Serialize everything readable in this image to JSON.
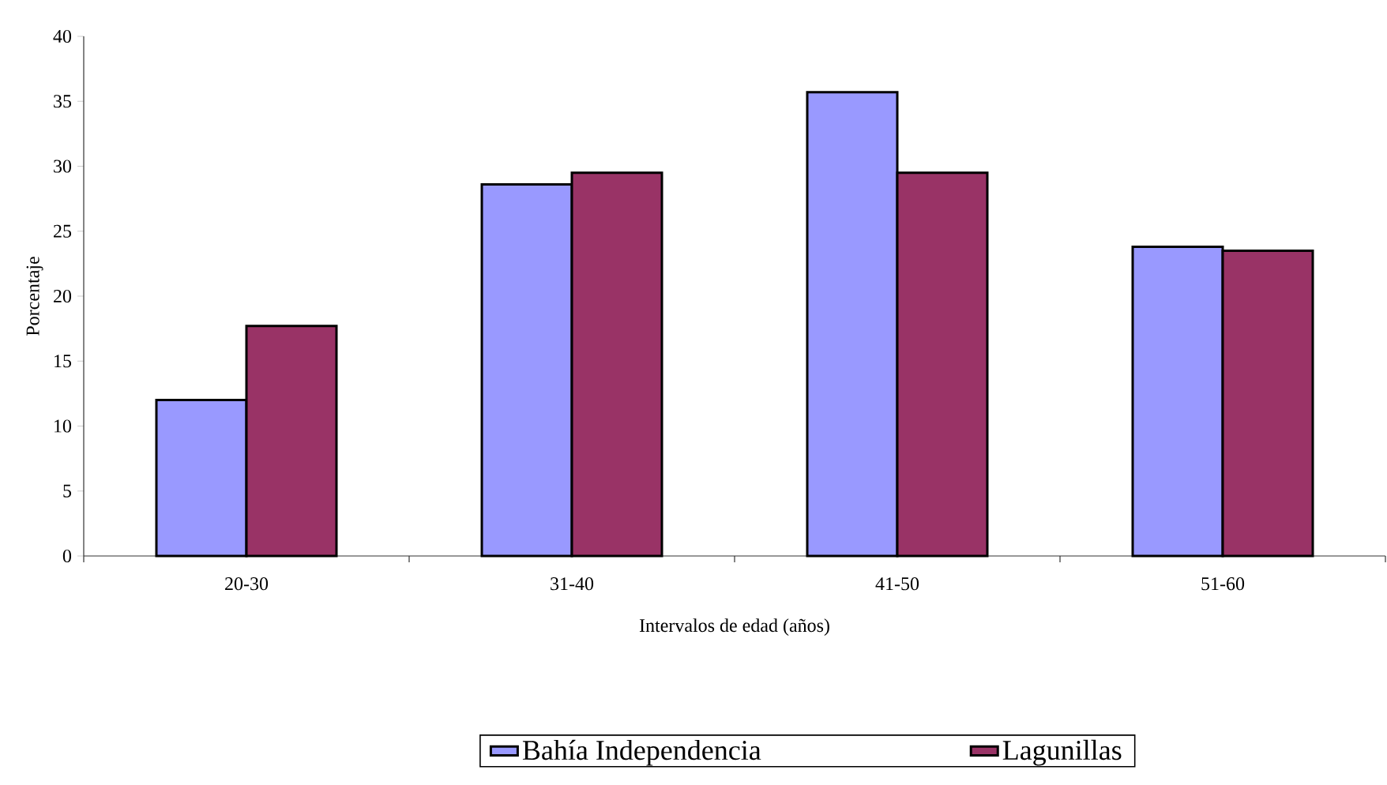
{
  "chart_data": {
    "type": "bar",
    "xlabel": "Intervalos de edad (años)",
    "ylabel": "Porcentaje",
    "categories": [
      "20-30",
      "31-40",
      "41-50",
      "51-60"
    ],
    "series": [
      {
        "name": "Bahía Independencia",
        "color": "#9999ff",
        "values": [
          12.0,
          28.6,
          35.7,
          23.8
        ]
      },
      {
        "name": "Lagunillas",
        "color": "#993366",
        "values": [
          17.7,
          29.5,
          29.5,
          23.5
        ]
      }
    ],
    "ylim": [
      0,
      40
    ],
    "yticks": [
      0,
      5,
      10,
      15,
      20,
      25,
      30,
      35,
      40
    ],
    "grid": false,
    "legend": "bottom"
  }
}
